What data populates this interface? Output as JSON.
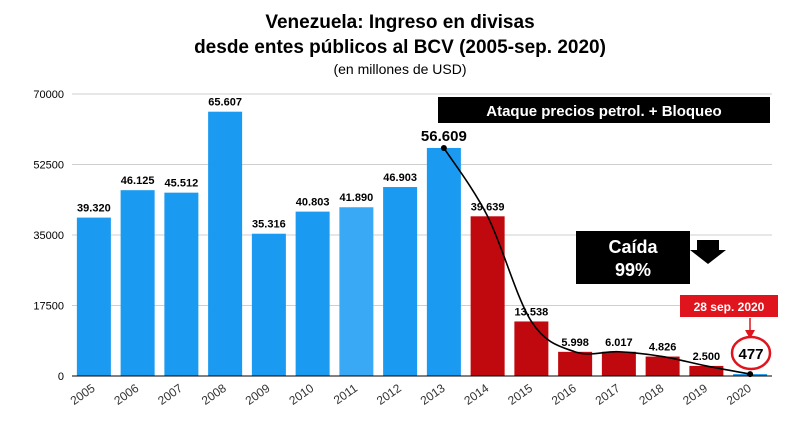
{
  "chart_data": {
    "type": "bar",
    "title_lines": [
      "Venezuela: Ingreso en divisas",
      "desde entes públicos al BCV  (2005-sep. 2020)"
    ],
    "subtitle": "(en millones de USD)",
    "categories": [
      "2005",
      "2006",
      "2007",
      "2008",
      "2009",
      "2010",
      "2011",
      "2012",
      "2013",
      "2014",
      "2015",
      "2016",
      "2017",
      "2018",
      "2019",
      "2020"
    ],
    "values": [
      39320,
      46125,
      45512,
      65607,
      35316,
      40803,
      41890,
      46903,
      56609,
      39639,
      13538,
      5998,
      6017,
      4826,
      2500,
      477
    ],
    "value_labels": [
      "39.320",
      "46.125",
      "45.512",
      "65.607",
      "35.316",
      "40.803",
      "41.890",
      "46.903",
      "56.609",
      "39.639",
      "13.538",
      "5.998",
      "6.017",
      "4.826",
      "2.500",
      "477"
    ],
    "bar_colors": [
      "#1a9af0",
      "#1a9af0",
      "#1a9af0",
      "#1a9af0",
      "#1a9af0",
      "#1a9af0",
      "#3aa9f5",
      "#1a9af0",
      "#1a9af0",
      "#c0090f",
      "#c0090f",
      "#c0090f",
      "#c0090f",
      "#c0090f",
      "#c0090f",
      "#1a9af0"
    ],
    "ylim": [
      0,
      70000
    ],
    "yticks": [
      0,
      17500,
      35000,
      52500,
      70000
    ],
    "ytick_labels": [
      "0",
      "17500",
      "35000",
      "52500",
      "70000"
    ],
    "grid": true,
    "trend_line": {
      "from_category": "2013",
      "to_category": "2020",
      "color": "#000000"
    },
    "annotations": {
      "banner": "Ataque precios petrol. + Bloqueo",
      "drop_lines": [
        "Caída",
        "99%"
      ],
      "date_label": "28 sep. 2020",
      "highlight_value": "477"
    },
    "colors": {
      "blue": "#1a9af0",
      "red": "#c0090f",
      "dark_box": "#000000"
    }
  }
}
